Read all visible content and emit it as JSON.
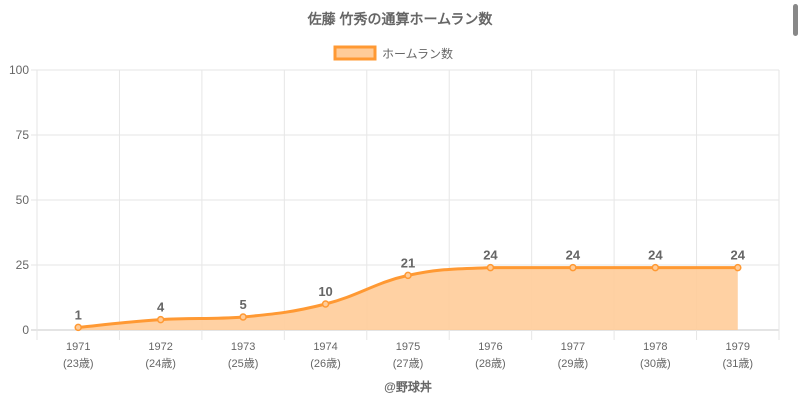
{
  "chart_data": {
    "type": "line",
    "title": "佐藤 竹秀の通算ホームラン数",
    "legend": {
      "label": "ホームラン数",
      "position": "top"
    },
    "categories": [
      "1971",
      "1972",
      "1973",
      "1974",
      "1975",
      "1976",
      "1977",
      "1978",
      "1979"
    ],
    "sublabels": [
      "(23歳)",
      "(24歳)",
      "(25歳)",
      "(26歳)",
      "(27歳)",
      "(28歳)",
      "(29歳)",
      "(30歳)",
      "(31歳)"
    ],
    "series": [
      {
        "name": "ホームラン数",
        "values": [
          1,
          4,
          5,
          10,
          21,
          24,
          24,
          24,
          24
        ]
      }
    ],
    "ylim": [
      0,
      100
    ],
    "yticks": [
      0,
      25,
      50,
      75,
      100
    ],
    "grid": true,
    "fill": true,
    "colors": {
      "line": "#ff9933",
      "fill": "#ffcc99",
      "grid": "#e6e6e6",
      "text": "#666666"
    }
  },
  "footer": "@野球丼"
}
